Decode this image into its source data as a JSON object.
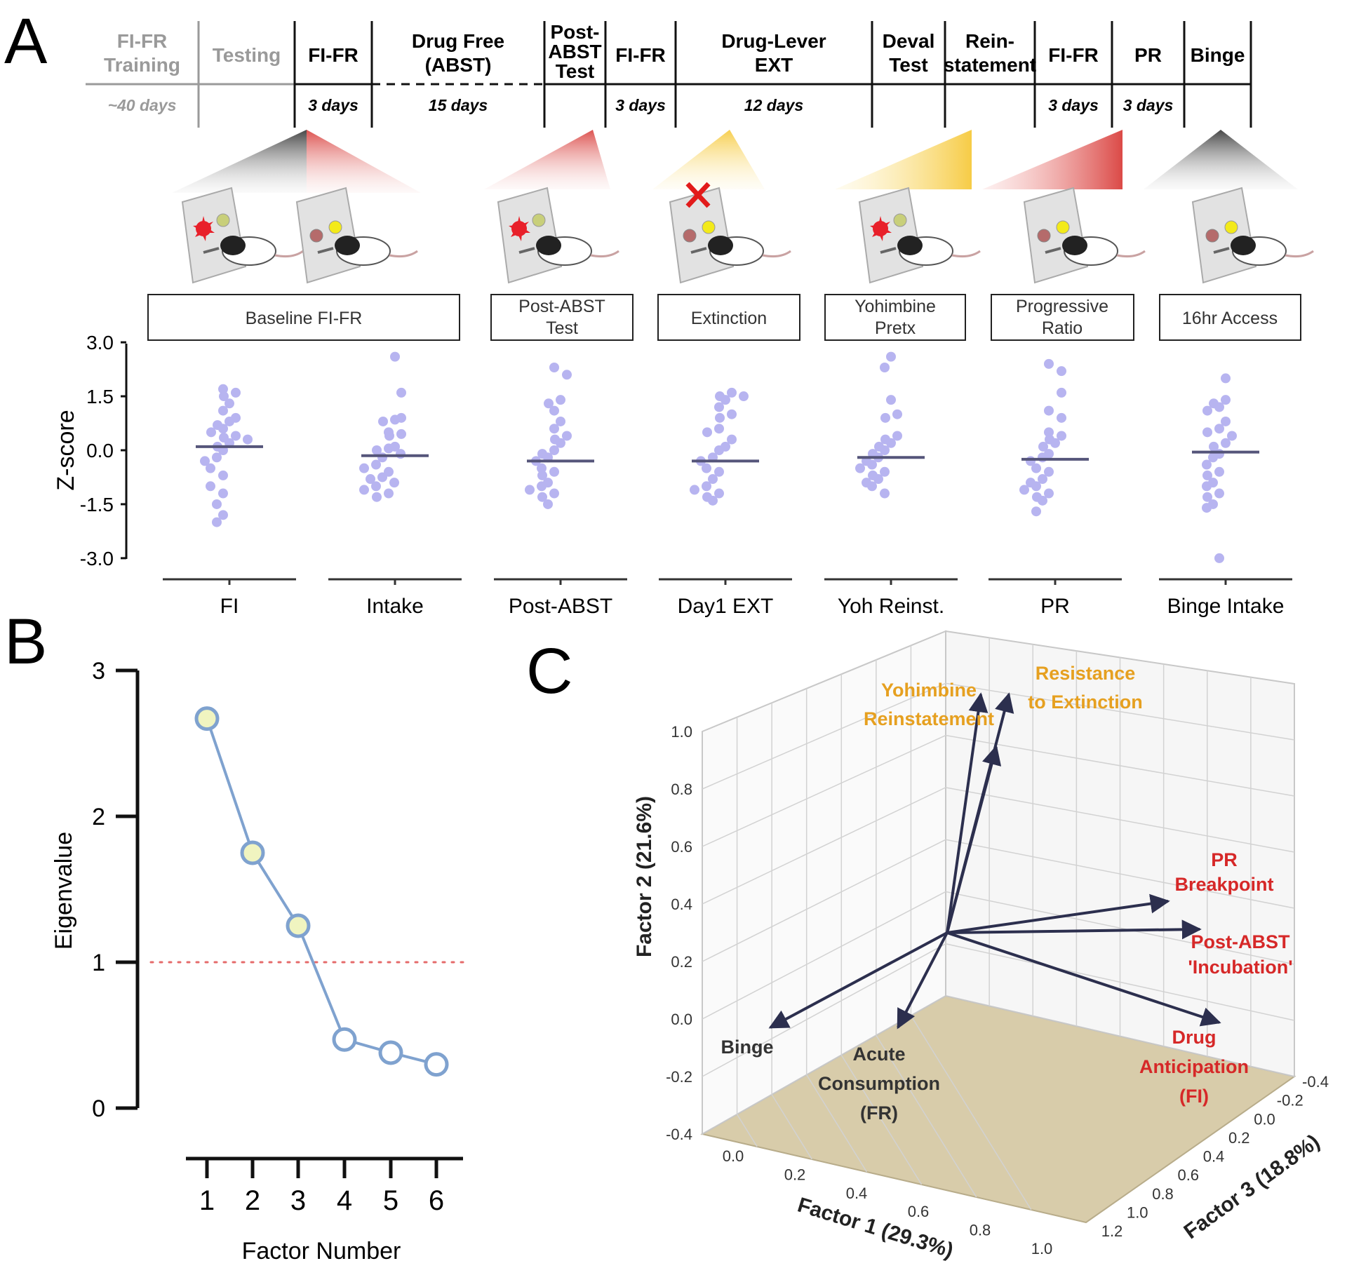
{
  "panel_a": {
    "letter": "A",
    "timeline": {
      "phases": [
        {
          "label_lines": [
            "FI-FR",
            "Training"
          ],
          "duration": "~40 days",
          "muted": true
        },
        {
          "label_lines": [
            "Testing"
          ],
          "duration": "",
          "muted": true
        },
        {
          "label_lines": [
            "FI-FR"
          ],
          "duration": "3 days",
          "muted": false
        },
        {
          "label_lines": [
            "Drug Free",
            "(ABST)"
          ],
          "duration": "15 days",
          "muted": false
        },
        {
          "label_lines": [
            "Post-",
            "ABST",
            "Test"
          ],
          "duration": "",
          "muted": false
        },
        {
          "label_lines": [
            "FI-FR"
          ],
          "duration": "3 days",
          "muted": false
        },
        {
          "label_lines": [
            "Drug-Lever",
            "EXT"
          ],
          "duration": "12 days",
          "muted": false
        },
        {
          "label_lines": [
            "Deval",
            "Test"
          ],
          "duration": "",
          "muted": false
        },
        {
          "label_lines": [
            "Rein-",
            "statement"
          ],
          "duration": "",
          "muted": false
        },
        {
          "label_lines": [
            "FI-FR"
          ],
          "duration": "3 days",
          "muted": false
        },
        {
          "label_lines": [
            "PR"
          ],
          "duration": "3 days",
          "muted": false
        },
        {
          "label_lines": [
            "Binge"
          ],
          "duration": "",
          "muted": false
        }
      ]
    },
    "condition_boxes": [
      {
        "lines": [
          "Baseline FI-FR"
        ]
      },
      {
        "lines": [
          "Post-ABST",
          "Test"
        ]
      },
      {
        "lines": [
          "Extinction"
        ]
      },
      {
        "lines": [
          "Yohimbine",
          "Pretx"
        ]
      },
      {
        "lines": [
          "Progressive",
          "Ratio"
        ]
      },
      {
        "lines": [
          "16hr Access"
        ]
      }
    ],
    "chart_data": {
      "type": "scatter",
      "ylabel": "Z-score",
      "ylim": [
        -3.0,
        3.0
      ],
      "yticks": [
        "3.0",
        "1.5",
        "0.0",
        "-1.5",
        "-3.0"
      ],
      "ytick_values": [
        3.0,
        1.5,
        0.0,
        -1.5,
        -3.0
      ],
      "point_color": "#b7b4f0",
      "mean_color": "#55557a",
      "categories": [
        "FI",
        "Intake",
        "Post-ABST",
        "Day1 EXT",
        "Yoh Reinst.",
        "PR",
        "Binge Intake"
      ],
      "series": [
        {
          "name": "FI",
          "mean": 0.1,
          "values": [
            1.7,
            1.6,
            1.5,
            1.3,
            1.1,
            0.9,
            0.8,
            0.7,
            0.6,
            0.5,
            0.4,
            0.35,
            0.3,
            0.2,
            0.1,
            0.0,
            -0.2,
            -0.3,
            -0.5,
            -0.7,
            -1.0,
            -1.2,
            -1.5,
            -1.8,
            -2.0
          ]
        },
        {
          "name": "Intake",
          "mean": -0.15,
          "values": [
            2.6,
            1.6,
            0.9,
            0.85,
            0.8,
            0.5,
            0.45,
            0.4,
            0.1,
            0.05,
            0.0,
            -0.1,
            -0.2,
            -0.4,
            -0.5,
            -0.6,
            -0.75,
            -0.8,
            -0.9,
            -1.0,
            -1.1,
            -1.2,
            -1.3
          ]
        },
        {
          "name": "Post-ABST",
          "mean": -0.3,
          "values": [
            2.3,
            2.1,
            1.4,
            1.3,
            1.1,
            0.8,
            0.6,
            0.4,
            0.3,
            0.2,
            0.0,
            -0.1,
            -0.2,
            -0.3,
            -0.5,
            -0.6,
            -0.7,
            -0.9,
            -1.0,
            -1.1,
            -1.2,
            -1.3,
            -1.5
          ]
        },
        {
          "name": "Day1 EXT",
          "mean": -0.3,
          "values": [
            1.6,
            1.5,
            1.5,
            1.4,
            1.2,
            1.0,
            0.9,
            0.6,
            0.5,
            0.3,
            0.1,
            0.0,
            -0.2,
            -0.3,
            -0.5,
            -0.6,
            -0.8,
            -1.0,
            -1.1,
            -1.2,
            -1.3,
            -1.4
          ]
        },
        {
          "name": "Yoh Reinst.",
          "mean": -0.2,
          "values": [
            2.6,
            2.3,
            1.4,
            1.0,
            0.9,
            0.4,
            0.3,
            0.2,
            0.1,
            0.0,
            -0.1,
            -0.2,
            -0.3,
            -0.4,
            -0.5,
            -0.6,
            -0.7,
            -0.8,
            -0.9,
            -1.0,
            -1.2
          ]
        },
        {
          "name": "PR",
          "mean": -0.25,
          "values": [
            2.4,
            2.2,
            1.6,
            1.1,
            0.9,
            0.5,
            0.4,
            0.3,
            0.2,
            0.1,
            -0.1,
            -0.2,
            -0.3,
            -0.5,
            -0.6,
            -0.8,
            -0.9,
            -1.0,
            -1.1,
            -1.2,
            -1.3,
            -1.4,
            -1.7
          ]
        },
        {
          "name": "Binge Intake",
          "mean": -0.05,
          "values": [
            2.0,
            1.4,
            1.3,
            1.2,
            1.1,
            0.8,
            0.6,
            0.5,
            0.4,
            0.2,
            0.1,
            -0.1,
            -0.2,
            -0.4,
            -0.6,
            -0.7,
            -0.9,
            -1.0,
            -1.2,
            -1.3,
            -1.5,
            -1.6,
            -3.0
          ]
        }
      ]
    }
  },
  "panel_b": {
    "letter": "B",
    "chart_data": {
      "type": "line",
      "title": "",
      "xlabel": "Factor Number",
      "ylabel": "Eigenvalue",
      "ylim": [
        0,
        3
      ],
      "yticks": [
        "0",
        "1",
        "2",
        "3"
      ],
      "ytick_values": [
        0,
        1,
        2,
        3
      ],
      "x": [
        "1",
        "2",
        "3",
        "4",
        "5",
        "6"
      ],
      "values": [
        2.67,
        1.75,
        1.25,
        0.47,
        0.38,
        0.3
      ],
      "threshold": 1,
      "line_color": "#7fa2cf",
      "retained_fill": "#f0f4c0",
      "threshold_color": "#e56b6b"
    }
  },
  "panel_c": {
    "letter": "C",
    "chart_data": {
      "type": "3d-loading-plot",
      "x_axis_title": "Factor 1 (29.3%)",
      "y_axis_title": "Factor 2 (21.6%)",
      "z_axis_title": "Factor 3 (18.8%)",
      "x_ticks": [
        "0.0",
        "0.2",
        "0.4",
        "0.6",
        "0.8",
        "1.0"
      ],
      "y_ticks": [
        "1.0",
        "0.8",
        "0.6",
        "0.4",
        "0.2",
        "0.0",
        "-0.2",
        "-0.4"
      ],
      "z_ticks": [
        "-0.4",
        "-0.2",
        "0.0",
        "0.2",
        "0.4",
        "0.6",
        "0.8",
        "1.0",
        "1.2"
      ],
      "vectors": [
        {
          "label_lines": [
            "Yohimbine",
            "Reinstatement"
          ],
          "color": "orange",
          "loadings": [
            0.1,
            0.8,
            0.2
          ]
        },
        {
          "label_lines": [
            "Resistance",
            "to Extinction"
          ],
          "color": "orange",
          "loadings": [
            0.15,
            0.95,
            0.3
          ]
        },
        {
          "label_lines": [
            "PR",
            "Breakpoint"
          ],
          "color": "red",
          "loadings": [
            0.7,
            0.45,
            0.9
          ]
        },
        {
          "label_lines": [
            "Post-ABST",
            "'Incubation'"
          ],
          "color": "red",
          "loadings": [
            0.8,
            0.35,
            0.9
          ]
        },
        {
          "label_lines": [
            "Drug",
            "Anticipation",
            "(FI)"
          ],
          "color": "red",
          "loadings": [
            0.85,
            -0.1,
            0.6
          ]
        },
        {
          "label_lines": [
            "Binge"
          ],
          "color": "dark",
          "loadings": [
            -0.1,
            0.05,
            -0.3
          ]
        },
        {
          "label_lines": [
            "Acute",
            "Consumption",
            "(FR)"
          ],
          "color": "dark",
          "loadings": [
            0.25,
            -0.05,
            -0.3
          ]
        }
      ]
    }
  }
}
